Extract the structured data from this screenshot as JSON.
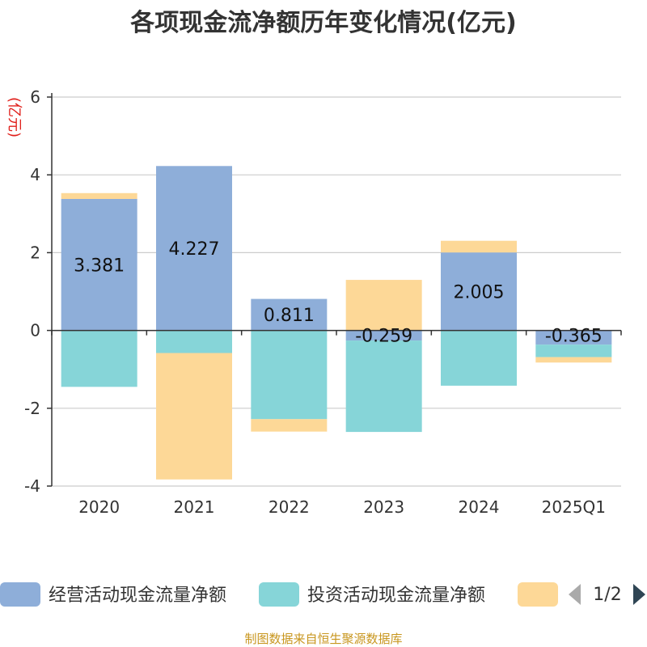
{
  "chart_data": {
    "type": "bar",
    "stacked": true,
    "title": "各项现金流净额历年变化情况(亿元)",
    "ylabel": "(亿元)",
    "xlabel": "",
    "ylim": [
      -4,
      6
    ],
    "yticks": [
      6,
      4,
      2,
      0,
      -2,
      -4
    ],
    "categories": [
      "2020",
      "2021",
      "2022",
      "2023",
      "2024",
      "2025Q1"
    ],
    "series": [
      {
        "name": "经营活动现金流量净额",
        "color": "#8eaed9",
        "values": [
          3.381,
          4.227,
          0.811,
          -0.259,
          2.005,
          -0.365
        ],
        "labels": [
          "3.381",
          "4.227",
          "0.811",
          "-0.259",
          "2.005",
          "-0.365"
        ]
      },
      {
        "name": "投资活动现金流量净额",
        "color": "#86d5d8",
        "values": [
          -1.45,
          -0.58,
          -2.28,
          -2.35,
          -1.42,
          -0.32
        ]
      },
      {
        "name": "",
        "color": "#fdd897",
        "values": [
          0.15,
          -3.25,
          -0.32,
          1.3,
          0.3,
          -0.14
        ]
      }
    ],
    "legend": {
      "position": "bottom",
      "pager": "1/2"
    },
    "grid": true
  },
  "source": "制图数据来自恒生聚源数据库"
}
